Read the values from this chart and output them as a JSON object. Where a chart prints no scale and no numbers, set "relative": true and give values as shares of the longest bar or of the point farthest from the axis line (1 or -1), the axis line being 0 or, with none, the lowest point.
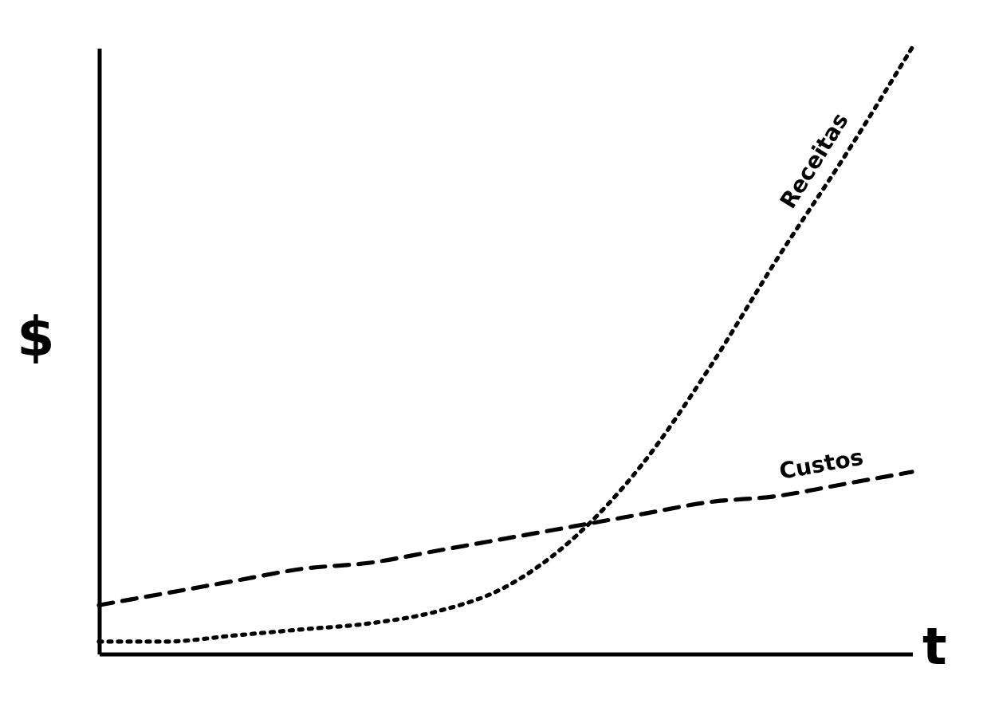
{
  "chart_data": {
    "type": "line",
    "relative": true,
    "xlabel": "t",
    "ylabel": "$",
    "grid": false,
    "categories": [
      null,
      null,
      null,
      null,
      null,
      null,
      null,
      null,
      null,
      null,
      null,
      null,
      null
    ],
    "series": [
      {
        "name": "Receitas",
        "color": "#000000",
        "line_style": "dotted",
        "values": [
          0.02,
          0.02,
          0.03,
          0.04,
          0.05,
          0.07,
          0.11,
          0.19,
          0.31,
          0.47,
          0.65,
          0.82,
          1
        ]
      },
      {
        "name": "Custos",
        "color": "#000000",
        "line_style": "dashed",
        "values": [
          0.08,
          0.1,
          0.12,
          0.14,
          0.15,
          0.17,
          0.19,
          0.21,
          0.23,
          0.25,
          0.26,
          0.28,
          0.3
        ]
      }
    ]
  }
}
